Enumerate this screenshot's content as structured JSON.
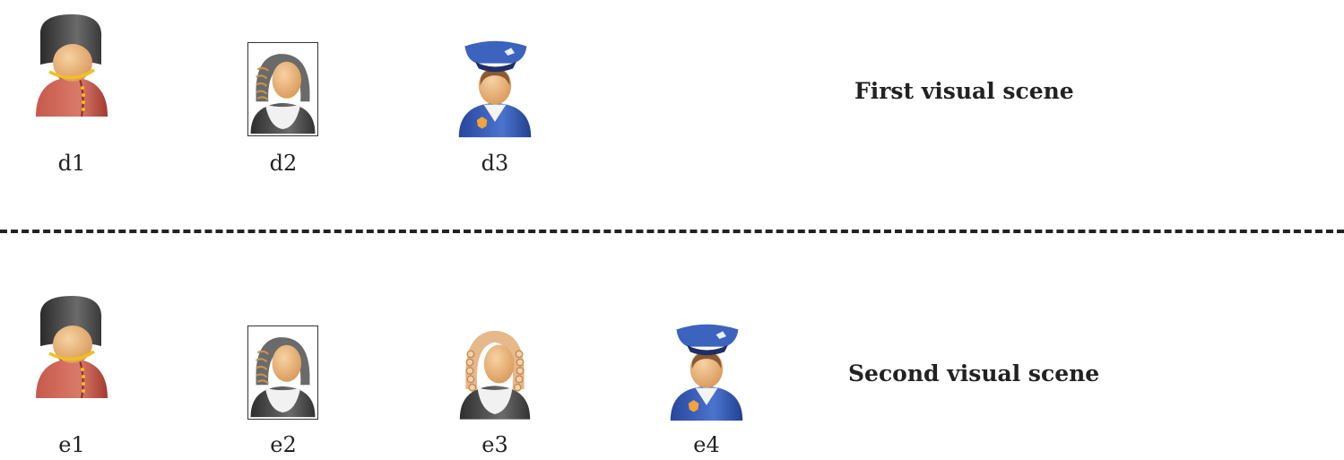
{
  "scenes": [
    {
      "title": "First visual scene",
      "items": [
        {
          "label": "d1",
          "icon": "royal-guard-icon",
          "framed": false
        },
        {
          "label": "d2",
          "icon": "judge-dark-wig-icon",
          "framed": true
        },
        {
          "label": "d3",
          "icon": "police-officer-icon",
          "framed": false
        }
      ]
    },
    {
      "title": "Second visual scene",
      "items": [
        {
          "label": "e1",
          "icon": "royal-guard-icon",
          "framed": false
        },
        {
          "label": "e2",
          "icon": "judge-dark-wig-icon",
          "framed": true
        },
        {
          "label": "e3",
          "icon": "judge-light-wig-icon",
          "framed": false
        },
        {
          "label": "e4",
          "icon": "police-officer-icon",
          "framed": false
        }
      ]
    }
  ],
  "colors": {
    "guard_coat": "#b5493c",
    "busby": "#3a3a3a",
    "skin": "#eab77e",
    "judge_robe": "#444444",
    "judge_wig_dark": "#6a6a6a",
    "judge_wig_light": "#e5b98a",
    "police_blue": "#2e56b0",
    "gold": "#f0c020"
  }
}
